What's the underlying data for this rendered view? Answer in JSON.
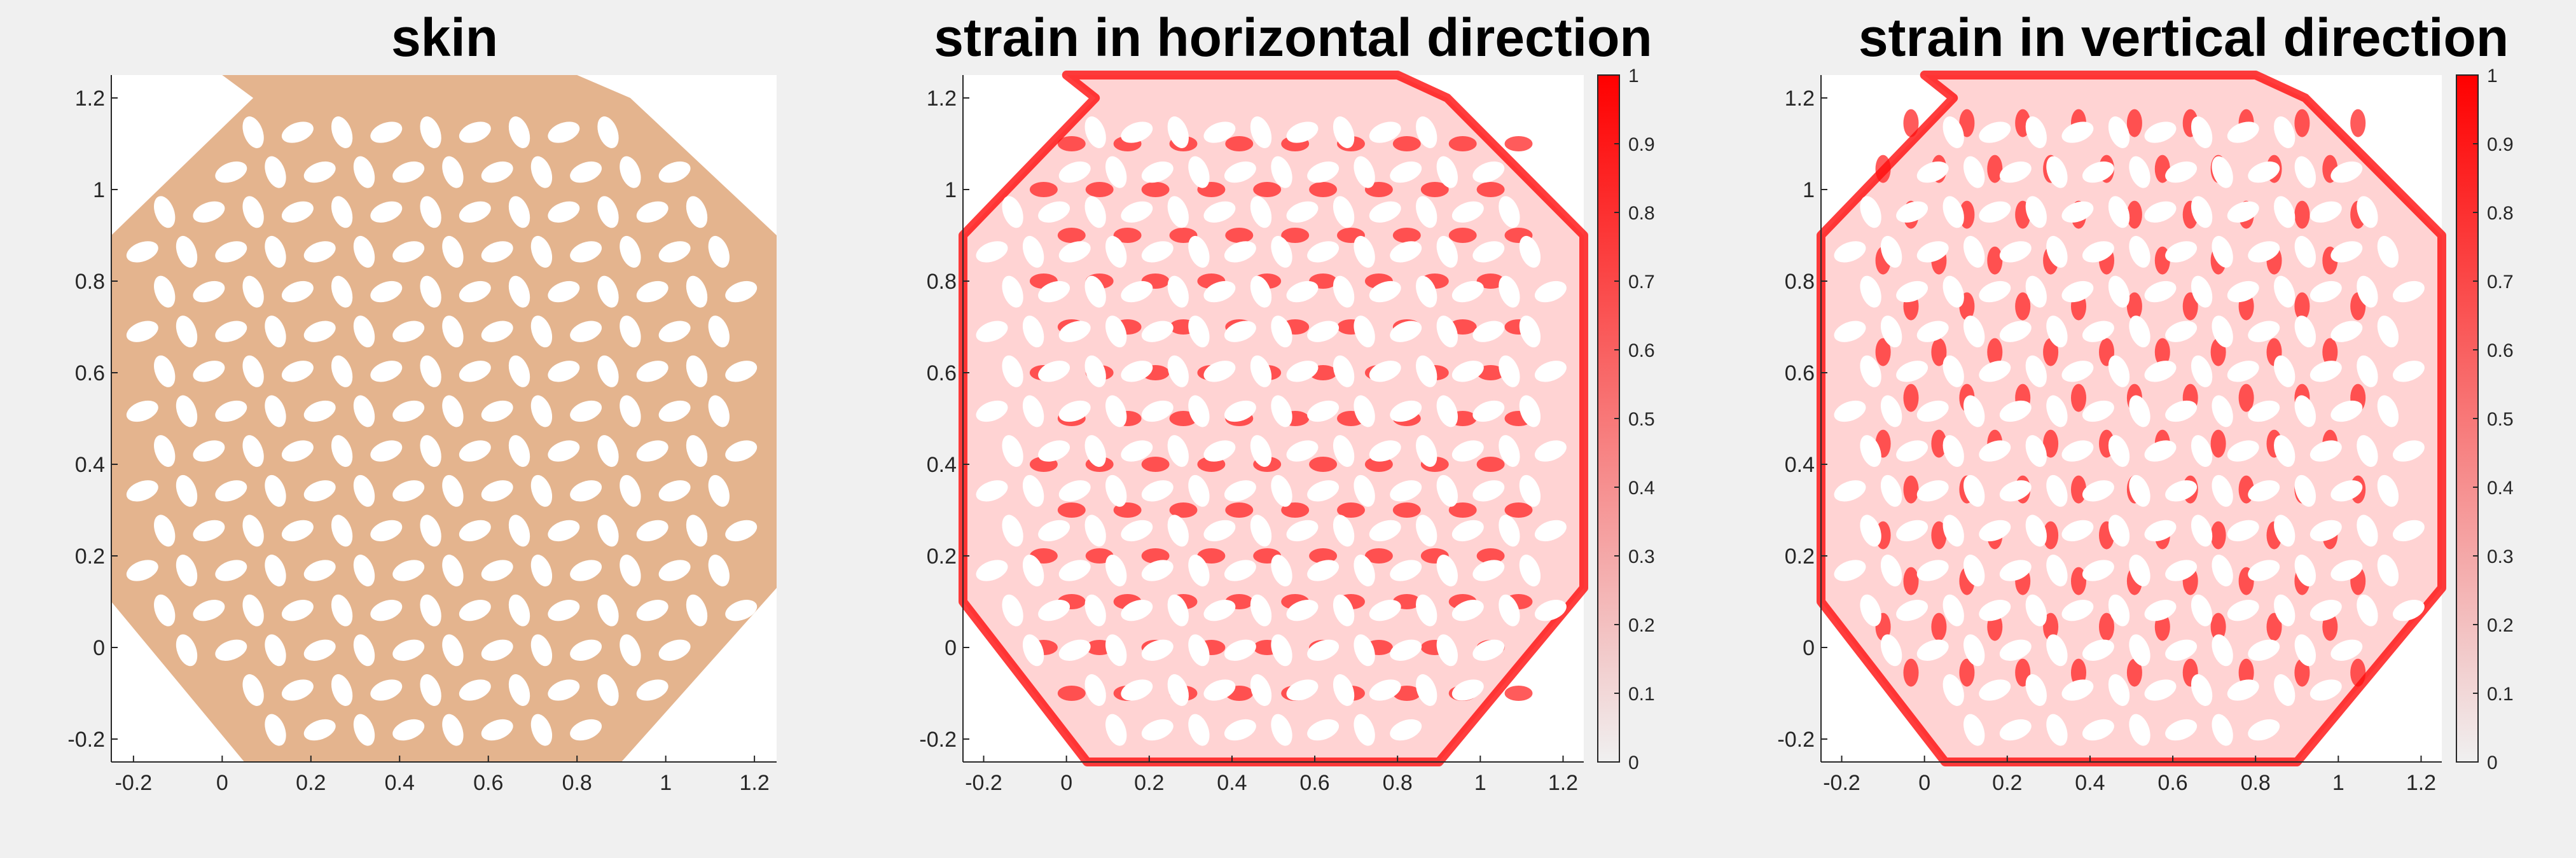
{
  "chart_data": [
    {
      "type": "heatmap",
      "title": "skin",
      "xlabel": "",
      "ylabel": "",
      "xlim": [
        -0.25,
        1.25
      ],
      "ylim": [
        -0.25,
        1.25
      ],
      "xticks": [
        "-0.2",
        "0",
        "0.2",
        "0.4",
        "0.6",
        "0.8",
        "1",
        "1.2"
      ],
      "yticks": [
        "-0.2",
        "0",
        "0.2",
        "0.4",
        "0.6",
        "0.8",
        "1",
        "1.2"
      ],
      "fill_color": "#e4b48e",
      "colorbar": false
    },
    {
      "type": "heatmap",
      "title": "strain in horizontal direction",
      "xlabel": "",
      "ylabel": "",
      "xlim": [
        -0.25,
        1.25
      ],
      "ylim": [
        -0.25,
        1.25
      ],
      "xticks": [
        "-0.2",
        "0",
        "0.2",
        "0.4",
        "0.6",
        "0.8",
        "1",
        "1.2"
      ],
      "yticks": [
        "-0.2",
        "0",
        "0.2",
        "0.4",
        "0.6",
        "0.8",
        "1",
        "1.2"
      ],
      "colormap": [
        "#f0f0f0",
        "#ff0000"
      ],
      "colorbar": true,
      "clim": [
        0,
        1
      ],
      "colorbar_ticks": [
        "0",
        "0.1",
        "0.2",
        "0.3",
        "0.4",
        "0.5",
        "0.6",
        "0.7",
        "0.8",
        "0.9",
        "1"
      ],
      "strain_direction": "horizontal"
    },
    {
      "type": "heatmap",
      "title": "strain in vertical direction",
      "xlabel": "",
      "ylabel": "",
      "xlim": [
        -0.25,
        1.25
      ],
      "ylim": [
        -0.25,
        1.25
      ],
      "xticks": [
        "-0.2",
        "0",
        "0.2",
        "0.4",
        "0.6",
        "0.8",
        "1",
        "1.2"
      ],
      "yticks": [
        "-0.2",
        "0",
        "0.2",
        "0.4",
        "0.6",
        "0.8",
        "1",
        "1.2"
      ],
      "colormap": [
        "#f0f0f0",
        "#ff0000"
      ],
      "colorbar": true,
      "clim": [
        0,
        1
      ],
      "colorbar_ticks": [
        "0",
        "0.1",
        "0.2",
        "0.3",
        "0.4",
        "0.5",
        "0.6",
        "0.7",
        "0.8",
        "0.9",
        "1"
      ],
      "strain_direction": "vertical"
    }
  ],
  "colors": {
    "figure_background": "#f0f0f0",
    "axes_background": "#ffffff",
    "skin": "#e4b48e",
    "strain_high": "#ff0000",
    "strain_low": "#f0f0f0",
    "axis_line": "#262626"
  }
}
